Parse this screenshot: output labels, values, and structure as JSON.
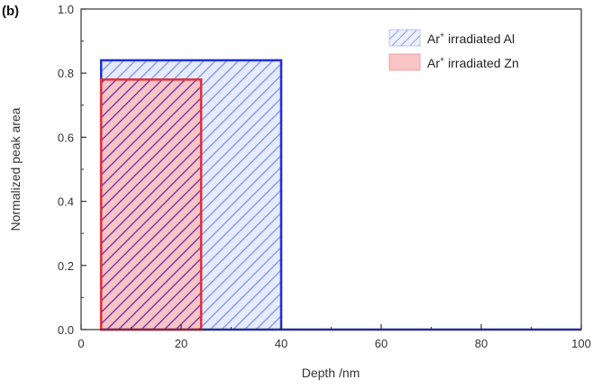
{
  "chart_data": {
    "type": "area",
    "panel_label": "(b)",
    "xlabel": "Depth /nm",
    "ylabel": "Normalized peak area",
    "xlim": [
      0,
      100
    ],
    "ylim": [
      0,
      1.0
    ],
    "x_ticks": [
      0,
      20,
      40,
      60,
      80,
      100
    ],
    "y_ticks": [
      0.0,
      0.2,
      0.4,
      0.6,
      0.8,
      1.0
    ],
    "y_tick_labels": [
      "0.0",
      "0.2",
      "0.4",
      "0.6",
      "0.8",
      "1.0"
    ],
    "grid": false,
    "legend_position": "top-right",
    "series": [
      {
        "name": "Ar+ irradiated Al",
        "name_main": "Ar",
        "name_sup": "+",
        "name_rest": " irradiated Al",
        "x_start": 4,
        "x_end": 40,
        "value": 0.84,
        "stroke": "#1f2fd6",
        "fill": "#e6ebff",
        "hatch": "#8a9ef0",
        "style": "hatched"
      },
      {
        "name": "Ar+ irradiated Zn",
        "name_main": "Ar",
        "name_sup": "+",
        "name_rest": " irradiated Zn",
        "x_start": 4,
        "x_end": 24,
        "value": 0.78,
        "stroke": "#e0303a",
        "fill": "#f8c4c6",
        "style": "filled"
      }
    ],
    "baseline": {
      "x_start": 40,
      "x_end": 100,
      "value": 0.0,
      "stroke": "#1f2fd6"
    }
  }
}
